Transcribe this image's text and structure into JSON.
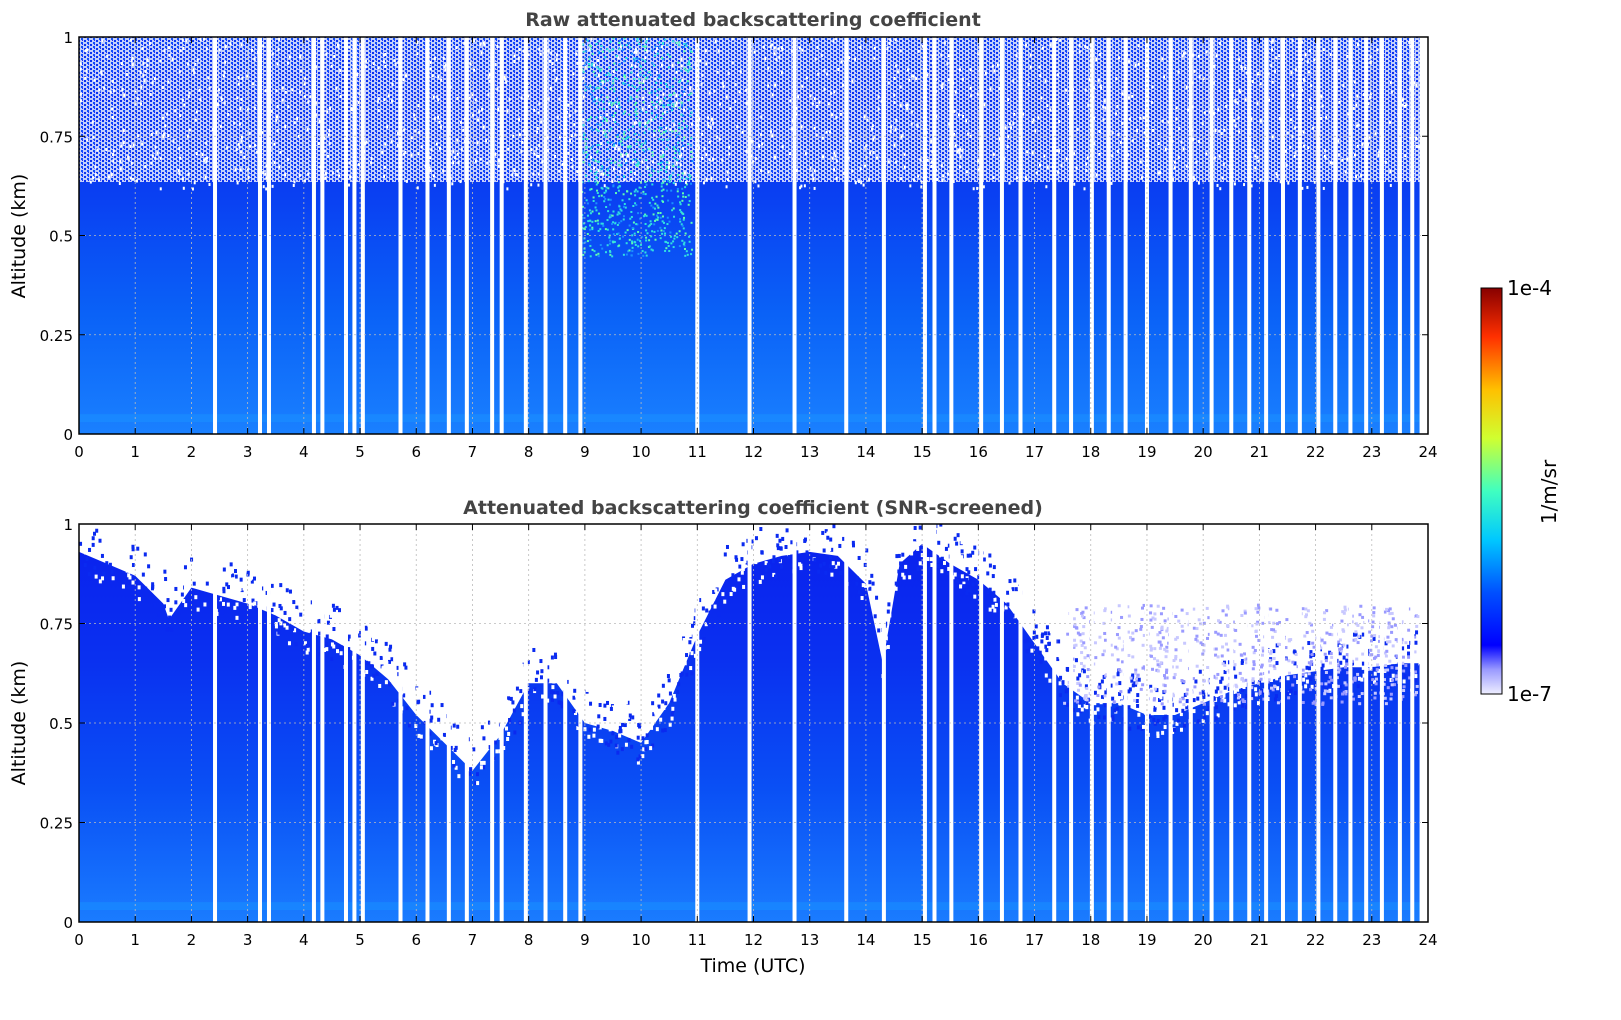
{
  "chart_data": [
    {
      "type": "heatmap",
      "title": "Raw attenuated backscattering coefficient",
      "xlabel": "",
      "ylabel": "Altitude (km)",
      "xlim": [
        0,
        24
      ],
      "ylim": [
        0,
        1
      ],
      "xticks": [
        "0",
        "1",
        "2",
        "3",
        "4",
        "5",
        "6",
        "7",
        "8",
        "9",
        "10",
        "11",
        "12",
        "13",
        "14",
        "15",
        "16",
        "17",
        "18",
        "19",
        "20",
        "21",
        "22",
        "23",
        "24"
      ],
      "yticks": [
        "0",
        "0.25",
        "0.5",
        "0.75",
        "1"
      ],
      "grid": true,
      "colormap": "jet",
      "color_scale": "log",
      "color_range": [
        1e-07,
        0.0001
      ],
      "data_gaps_hours": [
        2.42,
        3.22,
        3.38,
        4.18,
        4.33,
        4.75,
        4.9,
        5.05,
        5.72,
        6.2,
        6.58,
        6.9,
        7.35,
        7.52,
        7.95,
        8.3,
        8.65,
        8.92,
        11.0,
        11.93,
        12.73,
        13.65,
        14.32,
        15.05,
        15.22,
        15.52,
        16.05,
        16.42,
        16.75,
        17.35,
        17.65,
        18.02,
        18.32,
        18.62,
        19.0,
        19.42,
        19.78,
        20.15,
        20.5,
        20.82,
        21.12,
        21.42,
        21.72,
        22.05,
        22.35,
        22.62,
        22.9,
        23.18,
        23.5,
        23.72
      ],
      "description_note": ""
    },
    {
      "type": "heatmap",
      "title": "Attenuated backscattering coefficient (SNR-screened)",
      "xlabel": "Time (UTC)",
      "ylabel": "Altitude (km)",
      "xlim": [
        0,
        24
      ],
      "ylim": [
        0,
        1
      ],
      "xticks": [
        "0",
        "1",
        "2",
        "3",
        "4",
        "5",
        "6",
        "7",
        "8",
        "9",
        "10",
        "11",
        "12",
        "13",
        "14",
        "15",
        "16",
        "17",
        "18",
        "19",
        "20",
        "21",
        "22",
        "23",
        "24"
      ],
      "yticks": [
        "0",
        "0.25",
        "0.5",
        "0.75",
        "1"
      ],
      "grid": true,
      "colormap": "jet",
      "color_scale": "log",
      "color_range": [
        1e-07,
        0.0001
      ],
      "screened_top_km": {
        "hours": [
          0,
          0.5,
          1,
          1.5,
          1.6,
          2,
          2.5,
          3,
          3.5,
          4,
          4.5,
          5,
          5.5,
          6,
          6.5,
          7,
          7.5,
          8,
          8.5,
          9,
          9.5,
          10,
          10.5,
          11,
          11.5,
          12,
          12.5,
          13,
          13.5,
          14,
          14.3,
          14.6,
          15,
          15.5,
          16,
          16.5,
          17,
          17.5,
          18,
          18.5,
          19,
          19.5,
          20,
          20.5,
          21,
          21.5,
          22,
          22.5,
          23,
          23.5,
          24
        ],
        "values": [
          0.93,
          0.9,
          0.87,
          0.8,
          0.76,
          0.84,
          0.82,
          0.8,
          0.77,
          0.73,
          0.71,
          0.67,
          0.61,
          0.52,
          0.45,
          0.38,
          0.47,
          0.6,
          0.6,
          0.5,
          0.48,
          0.45,
          0.55,
          0.72,
          0.86,
          0.9,
          0.92,
          0.93,
          0.92,
          0.85,
          0.65,
          0.9,
          0.95,
          0.9,
          0.86,
          0.8,
          0.7,
          0.6,
          0.55,
          0.55,
          0.52,
          0.52,
          0.55,
          0.58,
          0.6,
          0.62,
          0.63,
          0.64,
          0.64,
          0.65,
          0.65
        ]
      },
      "data_gaps_hours": [
        2.42,
        3.22,
        3.38,
        4.18,
        4.33,
        4.75,
        4.9,
        5.05,
        5.72,
        6.2,
        6.58,
        6.9,
        7.35,
        7.52,
        7.95,
        8.3,
        8.65,
        8.92,
        11.0,
        11.93,
        12.73,
        13.65,
        14.32,
        15.05,
        15.22,
        15.52,
        16.05,
        16.42,
        16.75,
        17.35,
        17.65,
        18.02,
        18.32,
        18.62,
        19.0,
        19.42,
        19.78,
        20.15,
        20.5,
        20.82,
        21.12,
        21.42,
        21.72,
        22.05,
        22.35,
        22.62,
        22.9,
        23.18,
        23.5,
        23.72
      ]
    }
  ],
  "colorbar": {
    "max_label": "1e-4",
    "min_label": "1e-7",
    "unit_label": "1/m/sr",
    "colors": [
      "#eeeeff",
      "#c8c8ff",
      "#9a9aff",
      "#5a5aff",
      "#0000ff",
      "#0022ff",
      "#0050ff",
      "#0080ff",
      "#00b0ff",
      "#00e0ff",
      "#30ffd0",
      "#70ff90",
      "#b0ff50",
      "#f0ff10",
      "#ffd000",
      "#ff9000",
      "#ff5000",
      "#ff1000",
      "#d00000",
      "#880000"
    ]
  },
  "styles": {
    "low_blue": "#0a1ef0",
    "mid_blue": "#0a5cf5",
    "light_blue": "#1a80ff",
    "grid_color": "#bbbbbb"
  }
}
